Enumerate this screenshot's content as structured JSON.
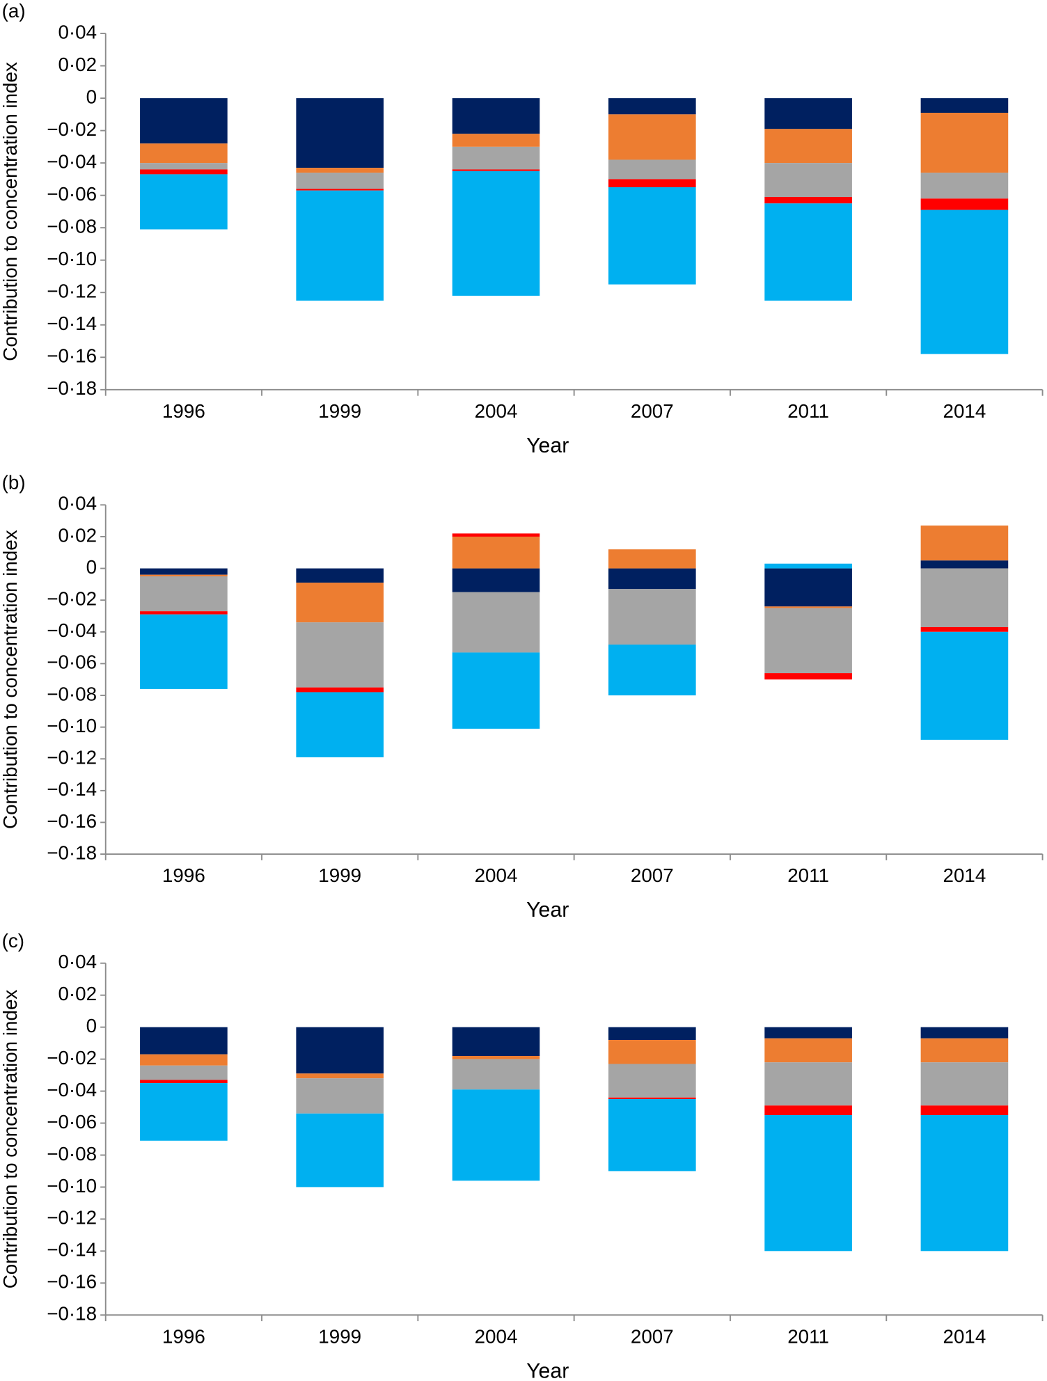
{
  "chart_data": [
    {
      "type": "bar",
      "stacked": true,
      "label": "(a)",
      "xlabel": "Year",
      "ylabel": "Contribution to concentration index",
      "categories": [
        "1996",
        "1999",
        "2004",
        "2007",
        "2011",
        "2014"
      ],
      "ylim": [
        -0.18,
        0.04
      ],
      "yticks": [
        {
          "value": 0.04,
          "label": "0·04"
        },
        {
          "value": 0.02,
          "label": "0·02"
        },
        0,
        {
          "value": -0.02,
          "label": "−0·02"
        },
        {
          "value": -0.04,
          "label": "−0·04"
        },
        {
          "value": -0.06,
          "label": "−0·06"
        },
        {
          "value": -0.08,
          "label": "−0·08"
        },
        {
          "value": -0.1,
          "label": "−0·10"
        },
        {
          "value": -0.12,
          "label": "−0·12"
        },
        {
          "value": -0.14,
          "label": "−0·14"
        },
        {
          "value": -0.16,
          "label": "−0·16"
        },
        {
          "value": -0.18,
          "label": "−0·18"
        }
      ],
      "series": [
        {
          "color": "#002060",
          "values": [
            -0.028,
            -0.043,
            -0.022,
            -0.01,
            -0.019,
            -0.009
          ]
        },
        {
          "color": "#ed7d31",
          "values": [
            -0.012,
            -0.003,
            -0.008,
            -0.028,
            -0.021,
            -0.037
          ]
        },
        {
          "color": "#a5a5a5",
          "values": [
            -0.004,
            -0.01,
            -0.014,
            -0.012,
            -0.021,
            -0.016
          ]
        },
        {
          "color": "#ff0000",
          "values": [
            -0.003,
            -0.001,
            -0.001,
            -0.005,
            -0.004,
            -0.007
          ]
        },
        {
          "color": "#00b0f0",
          "values": [
            -0.034,
            -0.068,
            -0.077,
            -0.06,
            -0.06,
            -0.089
          ]
        }
      ]
    },
    {
      "type": "bar",
      "stacked": true,
      "label": "(b)",
      "xlabel": "Year",
      "ylabel": "Contribution to concentration index",
      "categories": [
        "1996",
        "1999",
        "2004",
        "2007",
        "2011",
        "2014"
      ],
      "ylim": [
        -0.18,
        0.04
      ],
      "yticks": [
        {
          "value": 0.04,
          "label": "0·04"
        },
        {
          "value": 0.02,
          "label": "0·02"
        },
        0,
        {
          "value": -0.02,
          "label": "−0·02"
        },
        {
          "value": -0.04,
          "label": "−0·04"
        },
        {
          "value": -0.06,
          "label": "−0·06"
        },
        {
          "value": -0.08,
          "label": "−0·08"
        },
        {
          "value": -0.1,
          "label": "−0·10"
        },
        {
          "value": -0.12,
          "label": "−0·12"
        },
        {
          "value": -0.14,
          "label": "−0·14"
        },
        {
          "value": -0.16,
          "label": "−0·16"
        },
        {
          "value": -0.18,
          "label": "−0·18"
        }
      ],
      "series": [
        {
          "color": "#002060",
          "values": [
            -0.004,
            -0.009,
            -0.015,
            -0.013,
            -0.024,
            0.005
          ]
        },
        {
          "color": "#ed7d31",
          "values": [
            -0.001,
            -0.025,
            0.02,
            0.012,
            -0.001,
            0.022
          ]
        },
        {
          "color": "#a5a5a5",
          "values": [
            -0.022,
            -0.041,
            -0.038,
            -0.035,
            -0.041,
            -0.037
          ]
        },
        {
          "color": "#ff0000",
          "values": [
            -0.002,
            -0.003,
            0.002,
            0,
            -0.004,
            -0.003
          ]
        },
        {
          "color": "#00b0f0",
          "values": [
            -0.047,
            -0.041,
            -0.048,
            -0.032,
            0.003,
            -0.068
          ]
        }
      ]
    },
    {
      "type": "bar",
      "stacked": true,
      "label": "(c)",
      "xlabel": "Year",
      "ylabel": "Contribution to concentration index",
      "categories": [
        "1996",
        "1999",
        "2004",
        "2007",
        "2011",
        "2014"
      ],
      "ylim": [
        -0.18,
        0.04
      ],
      "yticks": [
        {
          "value": 0.04,
          "label": "0·04"
        },
        {
          "value": 0.02,
          "label": "0·02"
        },
        0,
        {
          "value": -0.02,
          "label": "−0·02"
        },
        {
          "value": -0.04,
          "label": "−0·04"
        },
        {
          "value": -0.06,
          "label": "−0·06"
        },
        {
          "value": -0.08,
          "label": "−0·08"
        },
        {
          "value": -0.1,
          "label": "−0·10"
        },
        {
          "value": -0.12,
          "label": "−0·12"
        },
        {
          "value": -0.14,
          "label": "−0·14"
        },
        {
          "value": -0.16,
          "label": "−0·16"
        },
        {
          "value": -0.18,
          "label": "−0·18"
        }
      ],
      "series": [
        {
          "color": "#002060",
          "values": [
            -0.017,
            -0.029,
            -0.018,
            -0.008,
            -0.007,
            -0.007
          ]
        },
        {
          "color": "#ed7d31",
          "values": [
            -0.007,
            -0.003,
            -0.002,
            -0.015,
            -0.015,
            -0.015
          ]
        },
        {
          "color": "#a5a5a5",
          "values": [
            -0.009,
            -0.022,
            -0.019,
            -0.021,
            -0.027,
            -0.027
          ]
        },
        {
          "color": "#ff0000",
          "values": [
            -0.002,
            0,
            0,
            -0.001,
            -0.006,
            -0.006
          ]
        },
        {
          "color": "#00b0f0",
          "values": [
            -0.036,
            -0.046,
            -0.057,
            -0.045,
            -0.085,
            -0.085
          ]
        }
      ]
    }
  ]
}
